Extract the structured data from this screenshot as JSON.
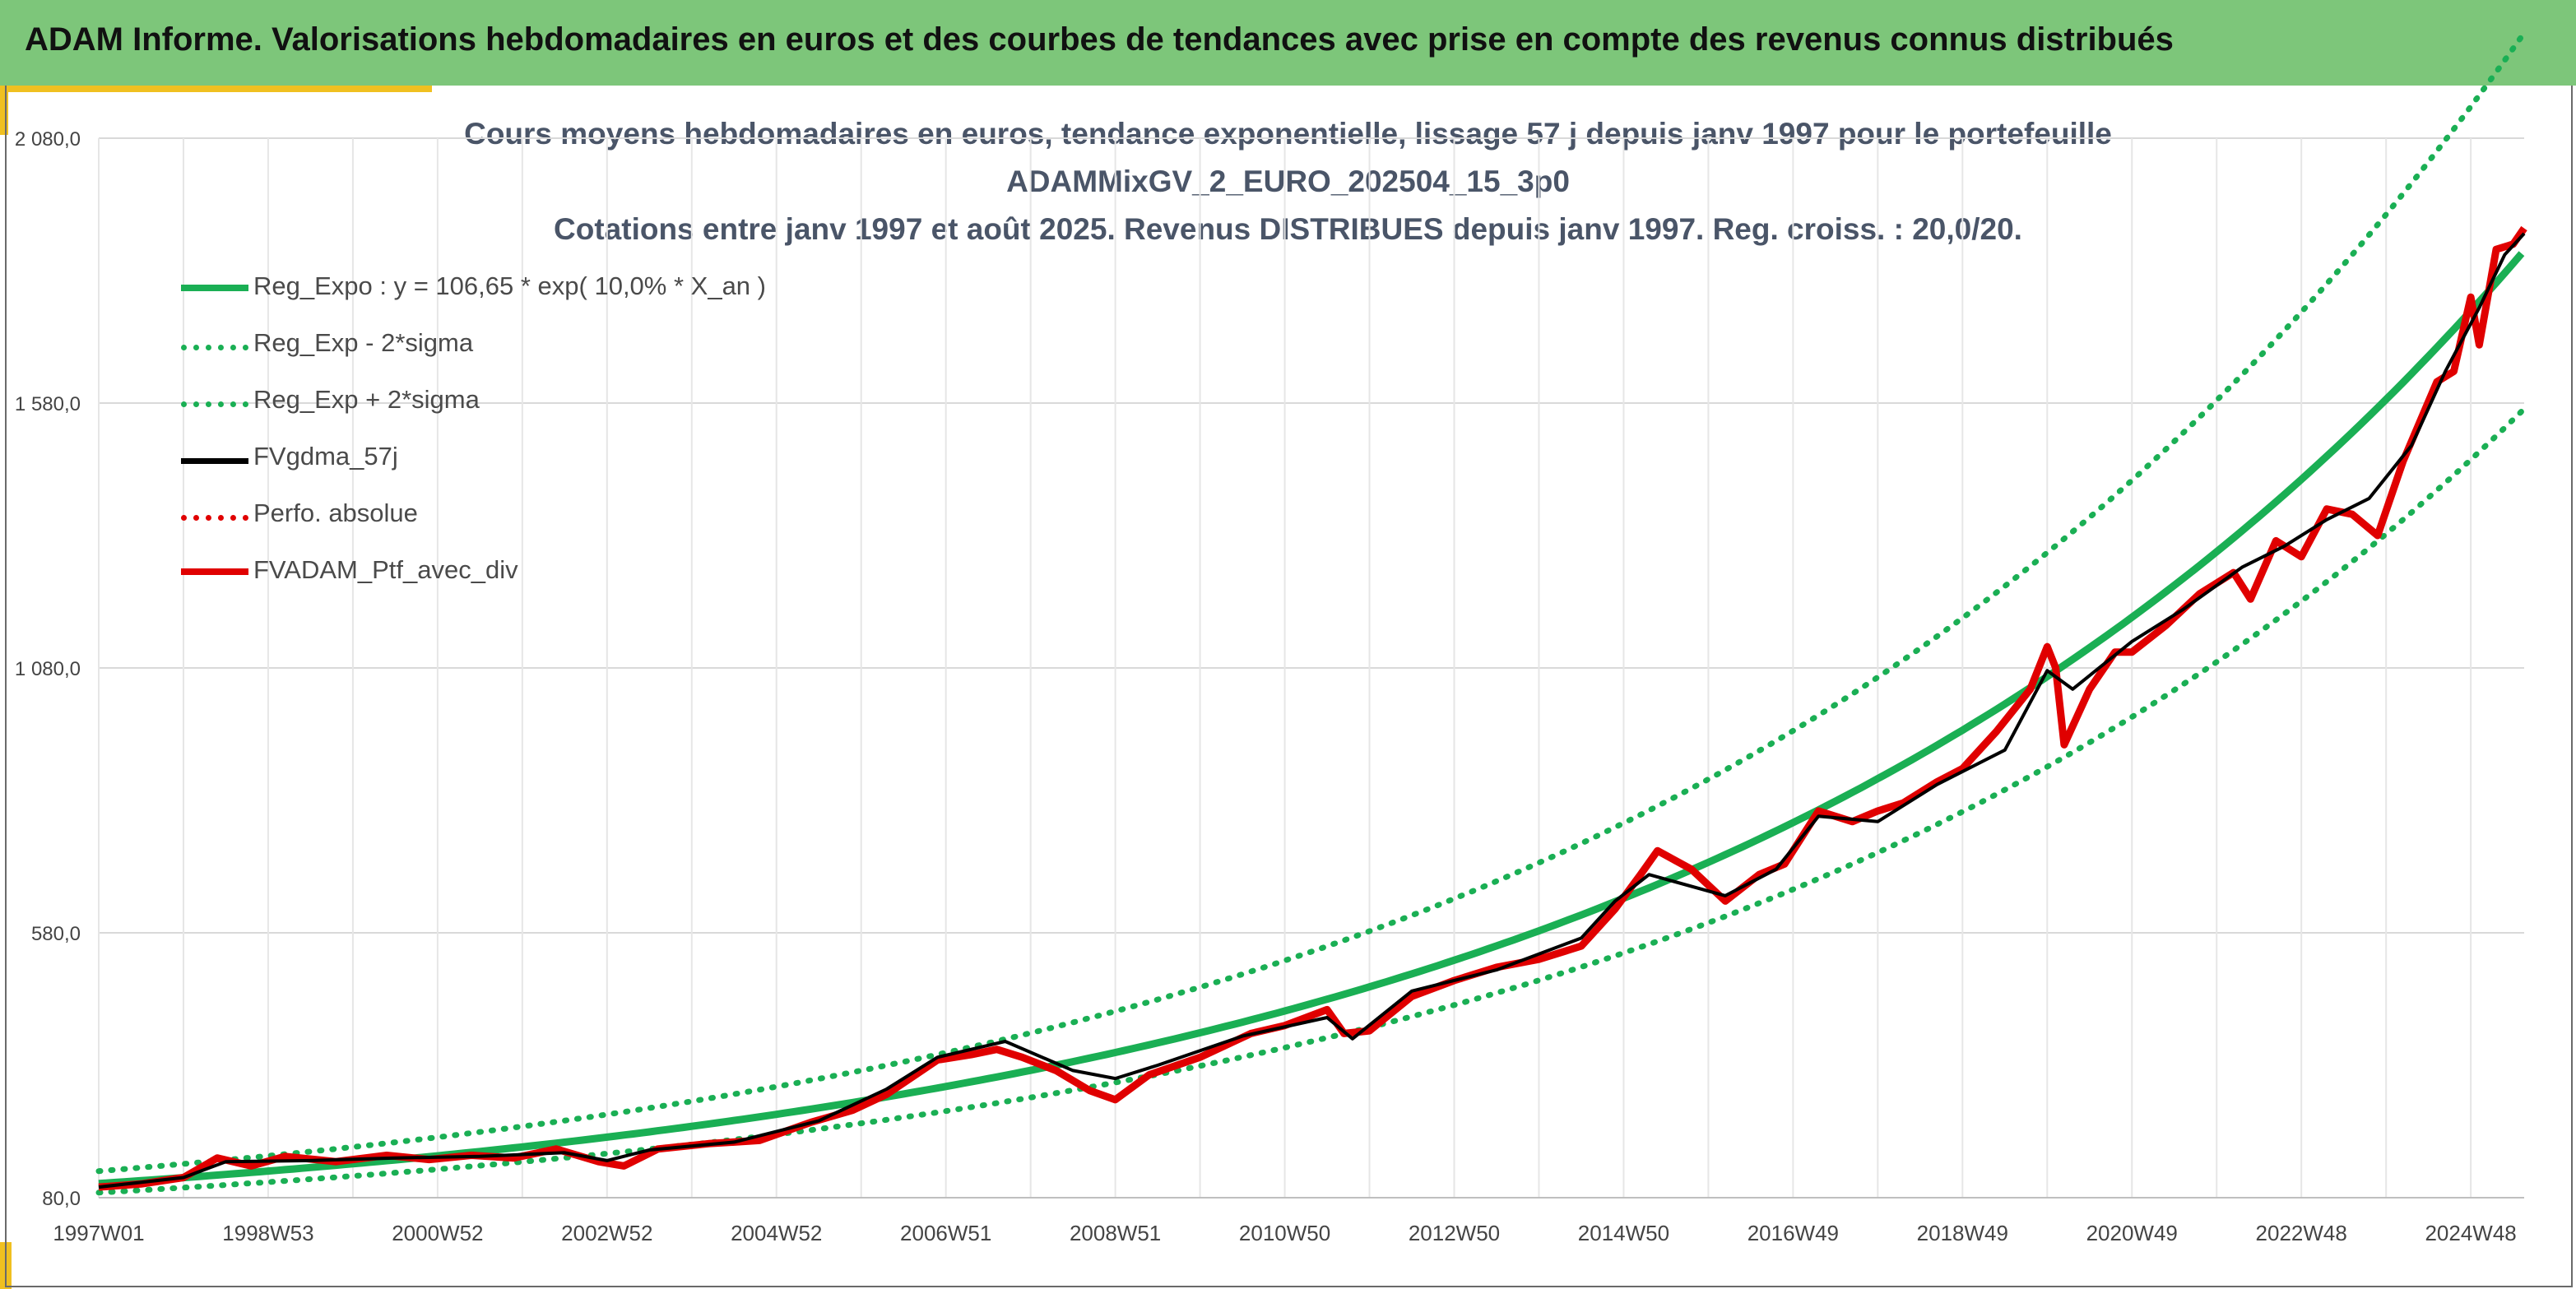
{
  "header": {
    "title": "ADAM Informe. Valorisations hebdomadaires en euros et des courbes de tendances avec prise en compte des revenus connus distribués"
  },
  "chart_data": {
    "type": "line",
    "title_lines": [
      "Cours moyens hebdomadaires en euros, tendance exponentielle, lissage 57 j depuis janv 1997 pour le portefeuille",
      "ADAMMixGV_2_EURO_202504_15_3p0",
      "Cotations entre janv 1997 et août 2025. Revenus DISTRIBUES depuis janv 1997. Reg. croiss. : 20,0/20."
    ],
    "x_tick_labels": [
      "1997W01",
      "1998W53",
      "2000W52",
      "2002W52",
      "2004W52",
      "2006W51",
      "2008W51",
      "2010W50",
      "2012W50",
      "2014W50",
      "2016W49",
      "2018W49",
      "2020W49",
      "2022W48",
      "2024W48"
    ],
    "x_tick_years": [
      1997,
      1999,
      2001,
      2003,
      2005,
      2007,
      2009,
      2011,
      2013,
      2015,
      2017,
      2019,
      2021,
      2023,
      2025
    ],
    "x_range": [
      1997,
      2025.63
    ],
    "y_tick_labels": [
      "80,0",
      "580,0",
      "1 080,0",
      "1 580,0",
      "2 080,0"
    ],
    "y_ticks": [
      80,
      580,
      1080,
      1580,
      2080
    ],
    "ylim": [
      80,
      2080
    ],
    "grid": true,
    "legend_position": "top-left",
    "series": [
      {
        "name": "Reg_Expo : y = 106,65 * exp( 10,0% *  X_an )",
        "style": "solid-thick",
        "color": "#1aaf54",
        "formula": {
          "a": 106.65,
          "rate": 0.1,
          "factor": 1
        }
      },
      {
        "name": "Reg_Exp - 2*sigma",
        "style": "dotted",
        "color": "#1aaf54",
        "formula": {
          "a": 106.65,
          "rate": 0.1,
          "factor": 0.84
        }
      },
      {
        "name": "Reg_Exp + 2*sigma",
        "style": "dotted",
        "color": "#1aaf54",
        "formula": {
          "a": 106.65,
          "rate": 0.1,
          "factor": 1.22
        }
      },
      {
        "name": "FVgdma_57j",
        "style": "solid",
        "color": "#000000",
        "points": [
          [
            1997.0,
            100
          ],
          [
            1998.0,
            118
          ],
          [
            1998.5,
            148
          ],
          [
            1999.5,
            150
          ],
          [
            2000.5,
            155
          ],
          [
            2001.5,
            158
          ],
          [
            2002.5,
            165
          ],
          [
            2003.0,
            150
          ],
          [
            2003.5,
            170
          ],
          [
            2004.5,
            185
          ],
          [
            2005.5,
            225
          ],
          [
            2006.3,
            285
          ],
          [
            2006.9,
            345
          ],
          [
            2007.7,
            375
          ],
          [
            2008.5,
            320
          ],
          [
            2009.0,
            305
          ],
          [
            2009.5,
            330
          ],
          [
            2010.5,
            385
          ],
          [
            2011.5,
            420
          ],
          [
            2011.8,
            380
          ],
          [
            2012.5,
            470
          ],
          [
            2013.5,
            510
          ],
          [
            2014.5,
            570
          ],
          [
            2014.9,
            640
          ],
          [
            2015.3,
            690
          ],
          [
            2016.2,
            650
          ],
          [
            2016.8,
            700
          ],
          [
            2017.3,
            800
          ],
          [
            2018.0,
            790
          ],
          [
            2018.7,
            860
          ],
          [
            2019.5,
            925
          ],
          [
            2020.0,
            1075
          ],
          [
            2020.3,
            1040
          ],
          [
            2021.0,
            1130
          ],
          [
            2021.6,
            1190
          ],
          [
            2022.3,
            1270
          ],
          [
            2022.8,
            1310
          ],
          [
            2023.3,
            1360
          ],
          [
            2023.8,
            1400
          ],
          [
            2024.3,
            1500
          ],
          [
            2024.7,
            1640
          ],
          [
            2025.1,
            1760
          ],
          [
            2025.4,
            1860
          ],
          [
            2025.63,
            1900
          ]
        ]
      },
      {
        "name": "Perfo. absolue",
        "style": "dotted",
        "color": "#e00000",
        "points": []
      },
      {
        "name": "FVADAM_Ptf_avec_div",
        "style": "solid-thick",
        "color": "#e00000",
        "points": [
          [
            1997.0,
            100
          ],
          [
            1997.5,
            106
          ],
          [
            1998.0,
            118
          ],
          [
            1998.4,
            155
          ],
          [
            1998.8,
            140
          ],
          [
            1999.2,
            158
          ],
          [
            1999.8,
            148
          ],
          [
            2000.4,
            160
          ],
          [
            2000.9,
            152
          ],
          [
            2001.4,
            160
          ],
          [
            2001.9,
            155
          ],
          [
            2002.4,
            172
          ],
          [
            2002.9,
            148
          ],
          [
            2003.2,
            140
          ],
          [
            2003.6,
            172
          ],
          [
            2004.2,
            182
          ],
          [
            2004.8,
            188
          ],
          [
            2005.4,
            222
          ],
          [
            2005.9,
            245
          ],
          [
            2006.3,
            275
          ],
          [
            2006.9,
            340
          ],
          [
            2007.3,
            350
          ],
          [
            2007.6,
            360
          ],
          [
            2007.9,
            345
          ],
          [
            2008.3,
            320
          ],
          [
            2008.7,
            282
          ],
          [
            2009.0,
            265
          ],
          [
            2009.4,
            312
          ],
          [
            2010.0,
            345
          ],
          [
            2010.6,
            390
          ],
          [
            2011.0,
            405
          ],
          [
            2011.5,
            435
          ],
          [
            2011.7,
            390
          ],
          [
            2012.0,
            395
          ],
          [
            2012.5,
            460
          ],
          [
            2013.0,
            490
          ],
          [
            2013.5,
            515
          ],
          [
            2014.0,
            530
          ],
          [
            2014.5,
            555
          ],
          [
            2014.9,
            625
          ],
          [
            2015.2,
            690
          ],
          [
            2015.4,
            735
          ],
          [
            2015.8,
            700
          ],
          [
            2016.2,
            640
          ],
          [
            2016.6,
            690
          ],
          [
            2016.9,
            710
          ],
          [
            2017.3,
            810
          ],
          [
            2017.7,
            790
          ],
          [
            2018.0,
            810
          ],
          [
            2018.3,
            825
          ],
          [
            2018.7,
            865
          ],
          [
            2019.0,
            890
          ],
          [
            2019.4,
            960
          ],
          [
            2019.8,
            1040
          ],
          [
            2020.0,
            1120
          ],
          [
            2020.1,
            1080
          ],
          [
            2020.2,
            935
          ],
          [
            2020.5,
            1040
          ],
          [
            2020.8,
            1110
          ],
          [
            2021.0,
            1110
          ],
          [
            2021.4,
            1160
          ],
          [
            2021.8,
            1220
          ],
          [
            2022.2,
            1260
          ],
          [
            2022.4,
            1210
          ],
          [
            2022.7,
            1320
          ],
          [
            2023.0,
            1290
          ],
          [
            2023.3,
            1380
          ],
          [
            2023.6,
            1370
          ],
          [
            2023.9,
            1330
          ],
          [
            2024.2,
            1470
          ],
          [
            2024.6,
            1620
          ],
          [
            2024.8,
            1640
          ],
          [
            2025.0,
            1780
          ],
          [
            2025.1,
            1690
          ],
          [
            2025.3,
            1870
          ],
          [
            2025.5,
            1880
          ],
          [
            2025.63,
            1910
          ]
        ]
      }
    ]
  }
}
